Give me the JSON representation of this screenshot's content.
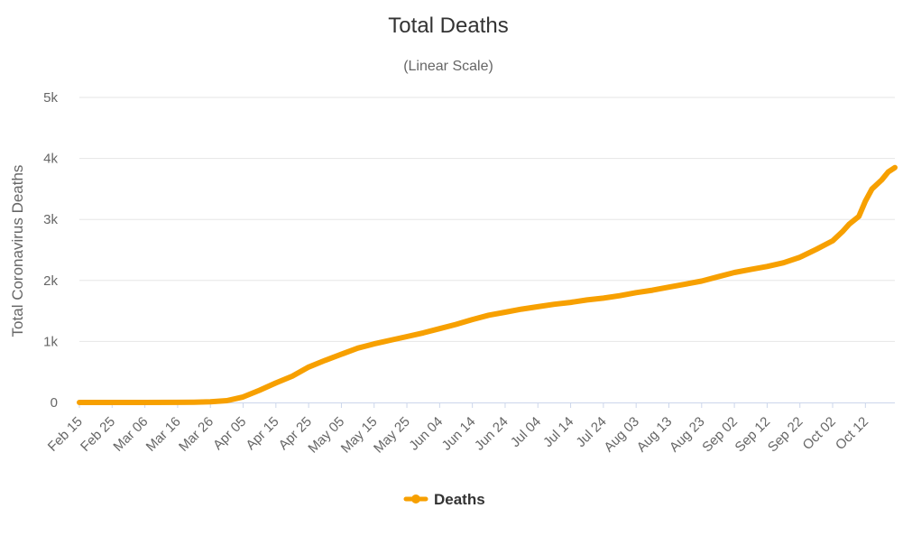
{
  "chart_data": {
    "type": "line",
    "title": "Total Deaths",
    "subtitle": "(Linear Scale)",
    "ylabel": "Total Coronavirus Deaths",
    "xlabel": "",
    "x_start": "Feb 15",
    "x_end": "Oct 21",
    "x_tick_labels": [
      "Feb 15",
      "Feb 25",
      "Mar 06",
      "Mar 16",
      "Mar 26",
      "Apr 05",
      "Apr 15",
      "Apr 25",
      "May 05",
      "May 15",
      "May 25",
      "Jun 04",
      "Jun 14",
      "Jun 24",
      "Jul 04",
      "Jul 14",
      "Jul 24",
      "Aug 03",
      "Aug 13",
      "Aug 23",
      "Sep 02",
      "Sep 12",
      "Sep 22",
      "Oct 02",
      "Oct 12"
    ],
    "y_tick_labels": [
      "0",
      "1k",
      "2k",
      "3k",
      "4k",
      "5k"
    ],
    "ylim": [
      0,
      5000
    ],
    "grid": true,
    "legend_position": "bottom-center",
    "color": "#f7a000",
    "series": [
      {
        "name": "Deaths",
        "x": [
          "Feb 15",
          "Feb 25",
          "Mar 06",
          "Mar 16",
          "Mar 21",
          "Mar 26",
          "Mar 31",
          "Apr 05",
          "Apr 10",
          "Apr 15",
          "Apr 20",
          "Apr 25",
          "Apr 30",
          "May 05",
          "May 10",
          "May 15",
          "May 20",
          "May 25",
          "May 30",
          "Jun 04",
          "Jun 09",
          "Jun 14",
          "Jun 19",
          "Jun 24",
          "Jun 29",
          "Jul 04",
          "Jul 09",
          "Jul 14",
          "Jul 19",
          "Jul 24",
          "Jul 29",
          "Aug 03",
          "Aug 08",
          "Aug 13",
          "Aug 18",
          "Aug 23",
          "Aug 28",
          "Sep 02",
          "Sep 07",
          "Sep 12",
          "Sep 17",
          "Sep 22",
          "Sep 27",
          "Oct 02",
          "Oct 05",
          "Oct 07",
          "Oct 10",
          "Oct 12",
          "Oct 14",
          "Oct 17",
          "Oct 19",
          "Oct 21"
        ],
        "values": [
          0,
          0,
          0,
          2,
          5,
          10,
          30,
          90,
          200,
          320,
          430,
          580,
          690,
          790,
          890,
          960,
          1020,
          1080,
          1140,
          1210,
          1280,
          1360,
          1430,
          1480,
          1530,
          1570,
          1610,
          1640,
          1680,
          1710,
          1750,
          1800,
          1840,
          1890,
          1940,
          1990,
          2060,
          2130,
          2180,
          2230,
          2290,
          2380,
          2510,
          2650,
          2800,
          2920,
          3050,
          3300,
          3500,
          3650,
          3780,
          3850
        ]
      }
    ]
  }
}
